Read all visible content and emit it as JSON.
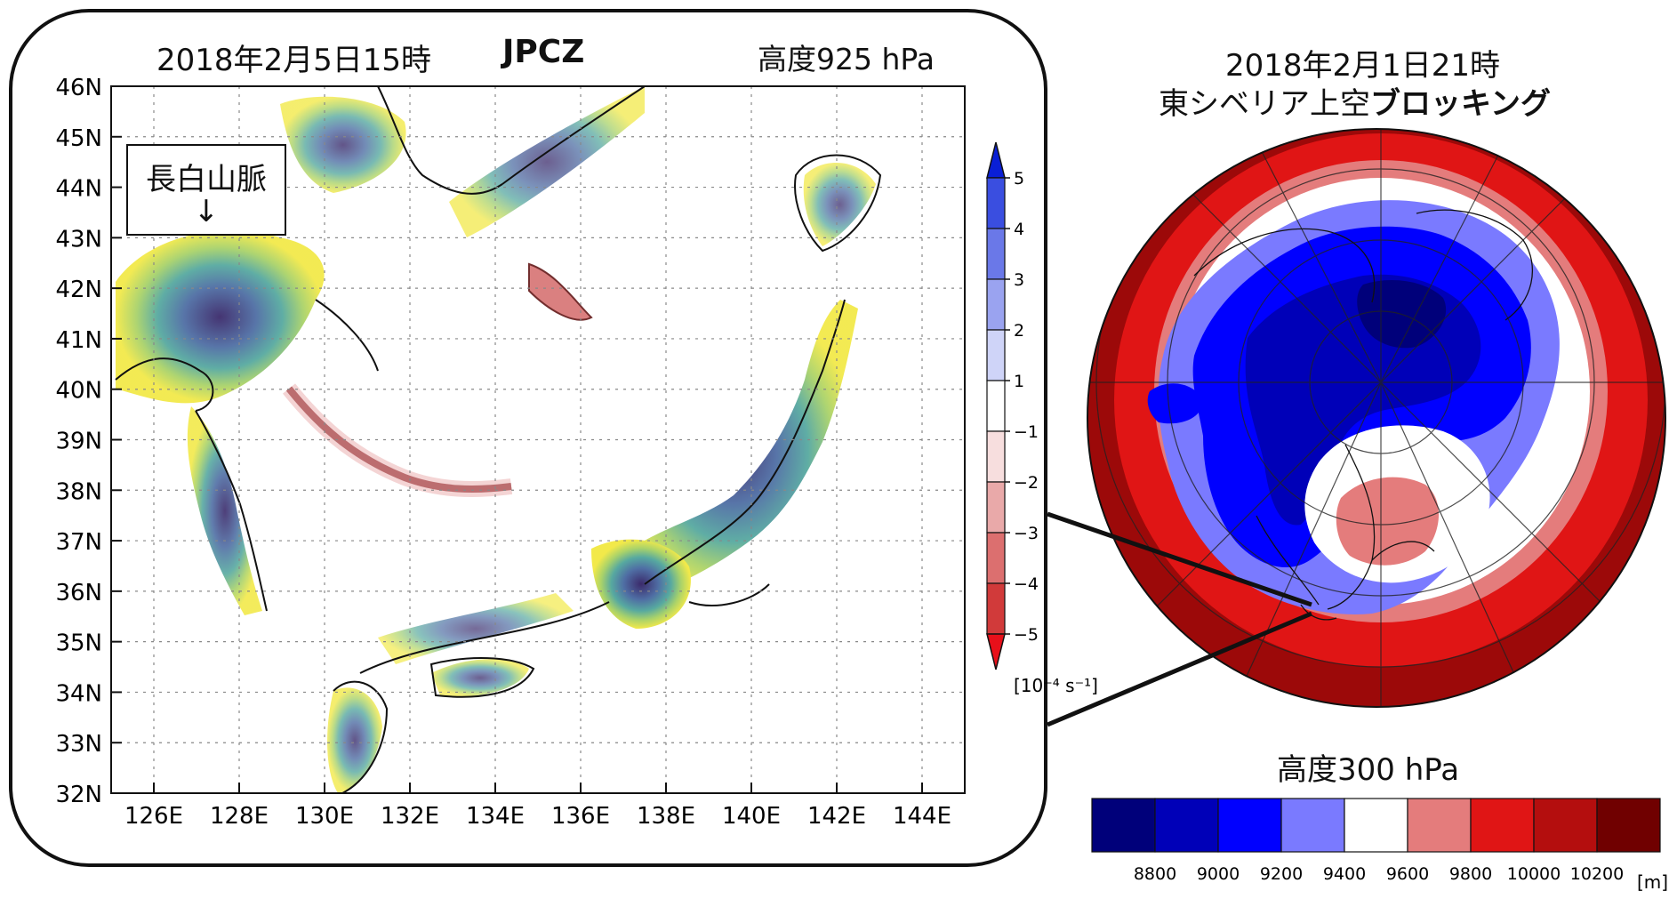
{
  "left_panel": {
    "datetime": "2018年2月5日15時",
    "event": "JPCZ",
    "level": "高度925 hPa",
    "lat_labels": [
      "46N",
      "45N",
      "44N",
      "43N",
      "42N",
      "41N",
      "40N",
      "39N",
      "38N",
      "37N",
      "36N",
      "35N",
      "34N",
      "33N",
      "32N"
    ],
    "lon_labels": [
      "126E",
      "128E",
      "130E",
      "132E",
      "134E",
      "136E",
      "138E",
      "140E",
      "142E",
      "144E"
    ],
    "lat_range": [
      32,
      46
    ],
    "lon_range": [
      125,
      145
    ],
    "grid": "dotted",
    "callout": {
      "label": "長白山脈",
      "arrow": "↓"
    }
  },
  "vorticity_colorbar": {
    "ticks": [
      "5",
      "4",
      "3",
      "2",
      "1",
      "−1",
      "−2",
      "−3",
      "−4",
      "−5"
    ],
    "unit": "[10⁻⁴ s⁻¹]",
    "colors": [
      "#0a1fd6",
      "#3a4ee0",
      "#6a78e8",
      "#9aa3f0",
      "#cfd4f8",
      "#ffffff",
      "#f7dede",
      "#e9a9a9",
      "#dc6f6f",
      "#d13a3a",
      "#e8101a"
    ]
  },
  "right_panel": {
    "datetime": "2018年2月1日21時",
    "title_prefix": "東シベリア上空",
    "title_bold": "ブロッキング",
    "level": "高度300 hPa"
  },
  "height_colorbar": {
    "labels": [
      "8800",
      "9000",
      "9200",
      "9400",
      "9600",
      "9800",
      "10000",
      "10200"
    ],
    "unit": "[m]",
    "colors": [
      "#00007a",
      "#0000b8",
      "#0000ff",
      "#7a7aff",
      "#ffffff",
      "#e47c7c",
      "#e01515",
      "#b40e0e",
      "#700000"
    ]
  }
}
